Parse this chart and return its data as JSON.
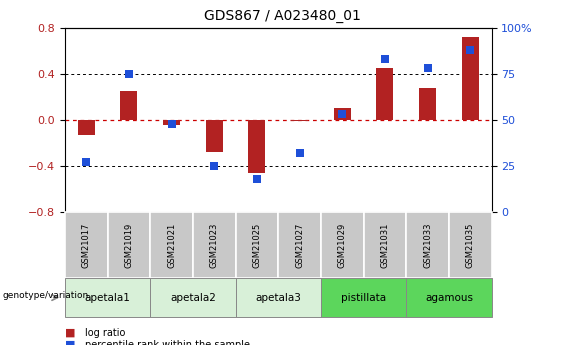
{
  "title": "GDS867 / A023480_01",
  "samples": [
    "GSM21017",
    "GSM21019",
    "GSM21021",
    "GSM21023",
    "GSM21025",
    "GSM21027",
    "GSM21029",
    "GSM21031",
    "GSM21033",
    "GSM21035"
  ],
  "log_ratio": [
    -0.13,
    0.25,
    -0.04,
    -0.28,
    -0.46,
    -0.01,
    0.1,
    0.45,
    0.28,
    0.72
  ],
  "percentile_rank": [
    27,
    75,
    48,
    25,
    18,
    32,
    53,
    83,
    78,
    88
  ],
  "ylim_left": [
    -0.8,
    0.8
  ],
  "ylim_right": [
    0,
    100
  ],
  "yticks_left": [
    -0.8,
    -0.4,
    0.0,
    0.4,
    0.8
  ],
  "yticks_right": [
    0,
    25,
    50,
    75,
    100
  ],
  "hline_values": [
    -0.4,
    0.0,
    0.4
  ],
  "bar_color": "#B22222",
  "dot_color": "#1E4FD8",
  "genotype_groups": [
    {
      "label": "apetala1",
      "indices": [
        0,
        1
      ],
      "color": "#d8f0d8"
    },
    {
      "label": "apetala2",
      "indices": [
        2,
        3
      ],
      "color": "#d8f0d8"
    },
    {
      "label": "apetala3",
      "indices": [
        4,
        5
      ],
      "color": "#d8f0d8"
    },
    {
      "label": "pistillata",
      "indices": [
        6,
        7
      ],
      "color": "#5cd65c"
    },
    {
      "label": "agamous",
      "indices": [
        8,
        9
      ],
      "color": "#5cd65c"
    }
  ],
  "tick_label_color_left": "#B22222",
  "tick_label_color_right": "#1E4FD8",
  "legend_items": [
    {
      "label": "log ratio",
      "color": "#B22222"
    },
    {
      "label": "percentile rank within the sample",
      "color": "#1E4FD8"
    }
  ],
  "genotype_label": "genotype/variation",
  "bar_width": 0.4,
  "dot_size": 28,
  "sample_box_color": "#c8c8c8",
  "fig_width": 5.65,
  "fig_height": 3.45,
  "fig_dpi": 100
}
